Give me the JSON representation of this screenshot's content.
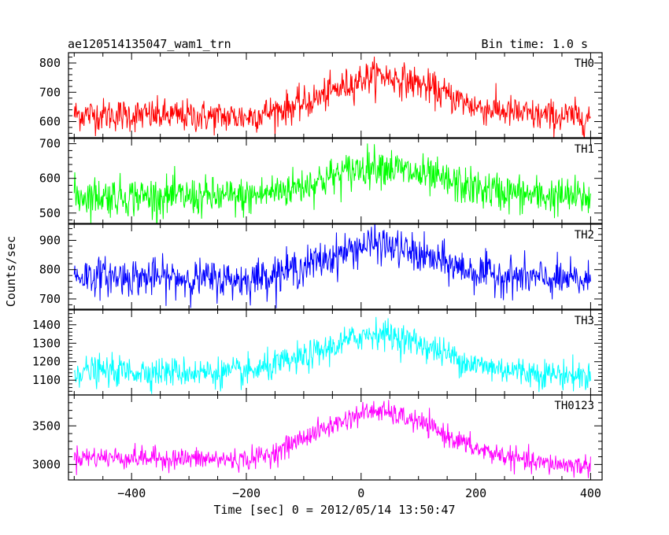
{
  "header": {
    "title": "ae120514135047_wam1_trn",
    "bin_time": "Bin time: 1.0 s"
  },
  "axes": {
    "xlabel": "Time [sec] 0 = 2012/05/14 13:50:47",
    "ylabel": "Counts/sec"
  },
  "chart_data": {
    "type": "line",
    "title": "ae120514135047_wam1_trn",
    "subtitle": "Bin time: 1.0 s",
    "xlabel": "Time [sec] 0 = 2012/05/14 13:50:47",
    "ylabel": "Counts/sec",
    "xlim": [
      -510,
      420
    ],
    "x_ticks": [
      -400,
      -200,
      0,
      200,
      400
    ],
    "x_range_data": [
      -500,
      400
    ],
    "x_step": 1,
    "grid": false,
    "legend": "none",
    "series": [
      {
        "name": "TH0",
        "color": "#ff0000",
        "ylim": [
          545,
          835
        ],
        "y_ticks": [
          600,
          700,
          800
        ],
        "baseline": 620,
        "peak": 760,
        "peak_time": 30,
        "peak_width": 110,
        "noise": 28,
        "profile_x": [
          -500,
          -200,
          -100,
          0,
          30,
          100,
          200,
          300,
          400
        ],
        "profile_y": [
          625,
          615,
          660,
          745,
          760,
          730,
          650,
          620,
          615
        ]
      },
      {
        "name": "TH1",
        "color": "#00ff00",
        "ylim": [
          470,
          715
        ],
        "y_ticks": [
          500,
          600,
          700
        ],
        "baseline": 550,
        "peak": 640,
        "peak_time": 30,
        "peak_width": 110,
        "noise": 28,
        "profile_x": [
          -500,
          -200,
          -100,
          0,
          30,
          100,
          200,
          300,
          400
        ],
        "profile_y": [
          550,
          545,
          580,
          630,
          640,
          610,
          570,
          550,
          545
        ]
      },
      {
        "name": "TH2",
        "color": "#0000ff",
        "ylim": [
          665,
          955
        ],
        "y_ticks": [
          700,
          800,
          900
        ],
        "baseline": 770,
        "peak": 890,
        "peak_time": 30,
        "peak_width": 110,
        "noise": 32,
        "profile_x": [
          -500,
          -200,
          -100,
          0,
          30,
          100,
          200,
          300,
          400
        ],
        "profile_y": [
          780,
          765,
          810,
          880,
          890,
          850,
          790,
          770,
          760
        ]
      },
      {
        "name": "TH3",
        "color": "#00ffff",
        "ylim": [
          1020,
          1480
        ],
        "y_ticks": [
          1100,
          1200,
          1300,
          1400
        ],
        "baseline": 1140,
        "peak": 1360,
        "peak_time": 30,
        "peak_width": 110,
        "noise": 40,
        "profile_x": [
          -500,
          -200,
          -100,
          0,
          30,
          100,
          200,
          300,
          400
        ],
        "profile_y": [
          1150,
          1140,
          1220,
          1340,
          1360,
          1300,
          1180,
          1140,
          1120
        ]
      },
      {
        "name": "TH0123",
        "color": "#ff00ff",
        "ylim": [
          2800,
          3900
        ],
        "y_ticks": [
          3000,
          3500
        ],
        "baseline": 3060,
        "peak": 3700,
        "peak_time": 30,
        "peak_width": 110,
        "noise": 70,
        "profile_x": [
          -500,
          -200,
          -150,
          -100,
          0,
          30,
          100,
          200,
          300,
          400
        ],
        "profile_y": [
          3100,
          3060,
          3150,
          3350,
          3660,
          3700,
          3550,
          3200,
          3020,
          2980
        ]
      }
    ]
  }
}
